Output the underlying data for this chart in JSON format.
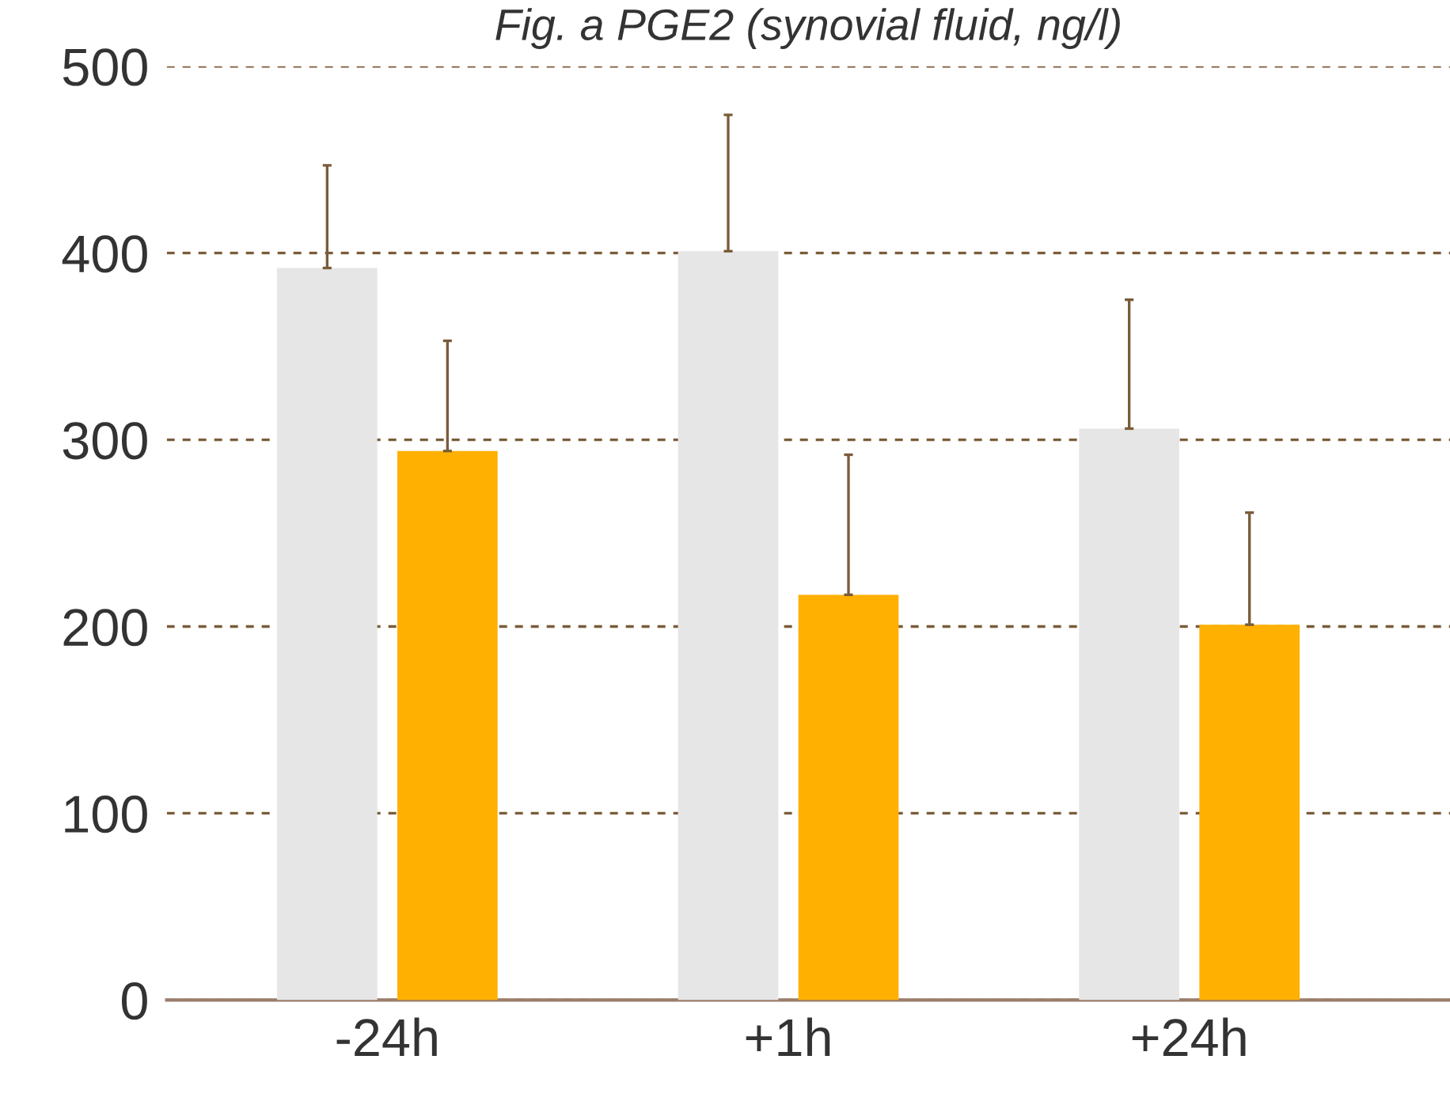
{
  "chart_data": {
    "type": "bar",
    "title": "Fig. a PGE2 (synovial fluid, ng/l)",
    "categories": [
      "-24h",
      "+1h",
      "+24h"
    ],
    "series": [
      {
        "color": "#e6e6e6",
        "values": [
          392,
          401,
          306
        ],
        "errors": [
          [
            392,
            447
          ],
          [
            401,
            474
          ],
          [
            306,
            375
          ]
        ]
      },
      {
        "color": "#ffb000",
        "values": [
          294,
          217,
          201
        ],
        "errors": [
          [
            294,
            353
          ],
          [
            217,
            292
          ],
          [
            201,
            261
          ]
        ]
      }
    ],
    "ylim": [
      0,
      500
    ],
    "yticks": [
      0,
      100,
      200,
      300,
      400,
      500
    ],
    "grid": "y",
    "legend": false
  }
}
